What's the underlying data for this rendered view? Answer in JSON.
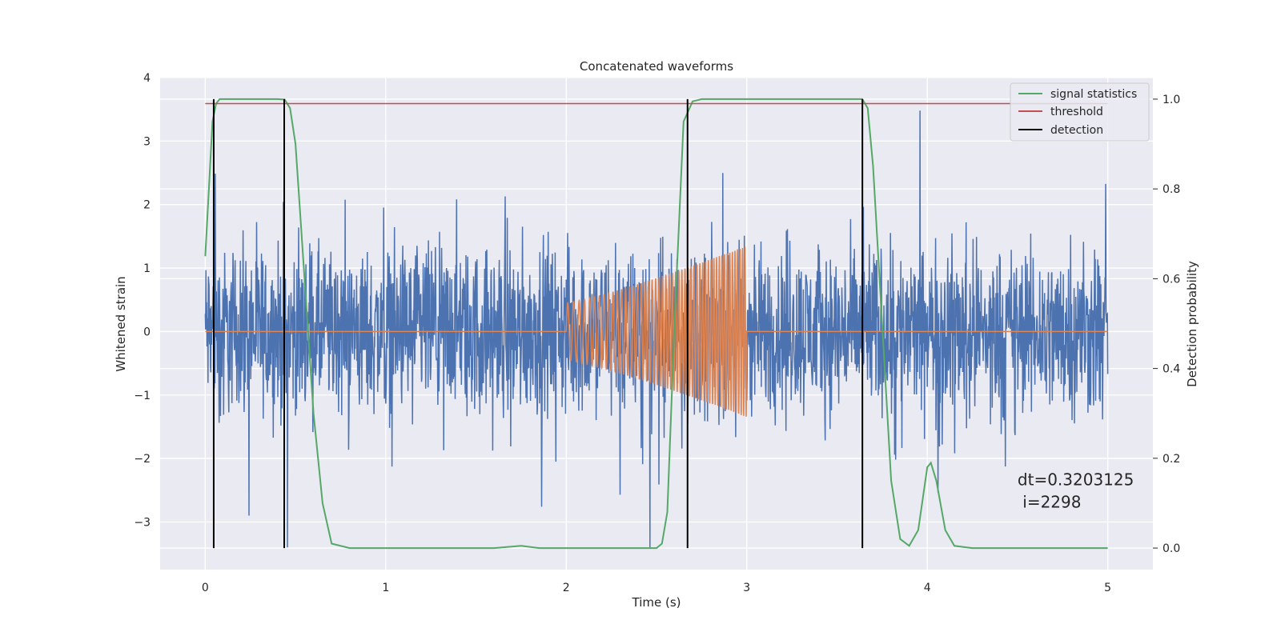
{
  "chart_data": {
    "type": "line",
    "title": "Concatenated waveforms",
    "xlabel": "Time (s)",
    "ylabel": "Whitened strain",
    "y2label": "Detection probability",
    "xlim": [
      -0.25,
      5.25
    ],
    "ylim": [
      -3.75,
      4.0
    ],
    "y2lim": [
      -0.048,
      1.048
    ],
    "xticks": [
      0,
      1,
      2,
      3,
      4,
      5
    ],
    "yticks": [
      -3,
      -2,
      -1,
      0,
      1,
      2,
      3,
      4
    ],
    "y2ticks": [
      0.0,
      0.2,
      0.4,
      0.6,
      0.8,
      1.0
    ],
    "grid": true,
    "legend_position": "top-right",
    "annotation": {
      "line1": "dt=0.3203125",
      "line2": " i=2298",
      "x": 4.5,
      "y": -2.6
    },
    "series": [
      {
        "kind": "noise",
        "color": "#4c72b0",
        "x_start": 0,
        "x_end": 5,
        "approx_range": [
          -3.4,
          3.65
        ],
        "typical_amplitude": 1.0
      },
      {
        "kind": "chirp",
        "color": "#dd8452",
        "x_start": 0,
        "x_end": 5,
        "chirp_start": 2.0,
        "chirp_end": 3.0,
        "amp_start": 0.45,
        "amp_end": 1.35
      },
      {
        "name": "signal statistics",
        "axis": "right",
        "color": "#55a868",
        "x": [
          0,
          0.02,
          0.04,
          0.06,
          0.08,
          0.1,
          0.2,
          0.3,
          0.4,
          0.44,
          0.47,
          0.5,
          0.55,
          0.6,
          0.65,
          0.7,
          0.8,
          1.0,
          1.6,
          1.75,
          1.85,
          2.1,
          2.5,
          2.53,
          2.56,
          2.6,
          2.65,
          2.7,
          2.75,
          2.8,
          3.5,
          3.64,
          3.67,
          3.7,
          3.75,
          3.8,
          3.85,
          3.9,
          3.95,
          4.0,
          4.02,
          4.05,
          4.1,
          4.15,
          4.25,
          5.0
        ],
        "y": [
          0.65,
          0.8,
          0.95,
          0.99,
          1.0,
          1.0,
          1.0,
          1.0,
          1.0,
          0.999,
          0.98,
          0.9,
          0.6,
          0.3,
          0.1,
          0.01,
          0.0,
          0.0,
          0.0,
          0.005,
          0.0,
          0.0,
          0.0,
          0.01,
          0.08,
          0.5,
          0.95,
          0.995,
          1.0,
          1.0,
          1.0,
          1.0,
          0.98,
          0.85,
          0.5,
          0.15,
          0.02,
          0.005,
          0.04,
          0.18,
          0.19,
          0.15,
          0.04,
          0.005,
          0.0,
          0.0
        ]
      },
      {
        "name": "threshold",
        "axis": "right",
        "color": "#c44e52",
        "x": [
          0,
          5
        ],
        "y": [
          0.99,
          0.99
        ]
      },
      {
        "name": "detection",
        "axis": "right",
        "color": "#000000",
        "x": [
          0.0469,
          0.4375,
          2.6719,
          3.6406
        ],
        "y_range": [
          0.0,
          1.0
        ]
      }
    ]
  }
}
